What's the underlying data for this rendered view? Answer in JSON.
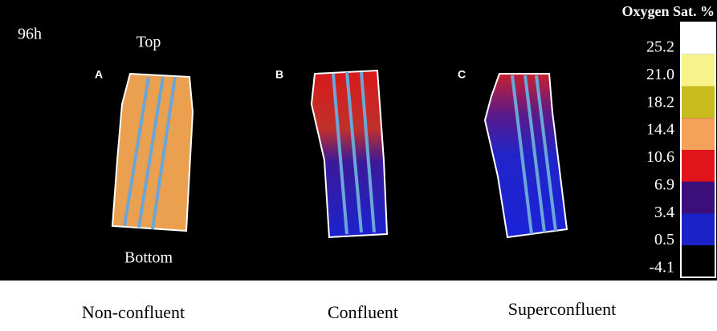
{
  "figure": {
    "time": "96h",
    "top_label": "Top",
    "bottom_label": "Bottom",
    "panels": [
      {
        "letter": "A",
        "caption": "Non-confluent"
      },
      {
        "letter": "B",
        "caption": "Confluent"
      },
      {
        "letter": "C",
        "caption": "Superconfluent"
      }
    ]
  },
  "colorbar": {
    "title": "Oxygen Sat. %",
    "ticks": [
      "25.2",
      "21.0",
      "18.2",
      "14.4",
      "10.6",
      "6.9",
      "3.4",
      "0.5",
      "-4.1"
    ],
    "colors": [
      "#ffffff",
      "#f7f28a",
      "#c8bb1e",
      "#f4a15a",
      "#e0141a",
      "#3c0e7a",
      "#1a22c8",
      "#000000"
    ]
  }
}
